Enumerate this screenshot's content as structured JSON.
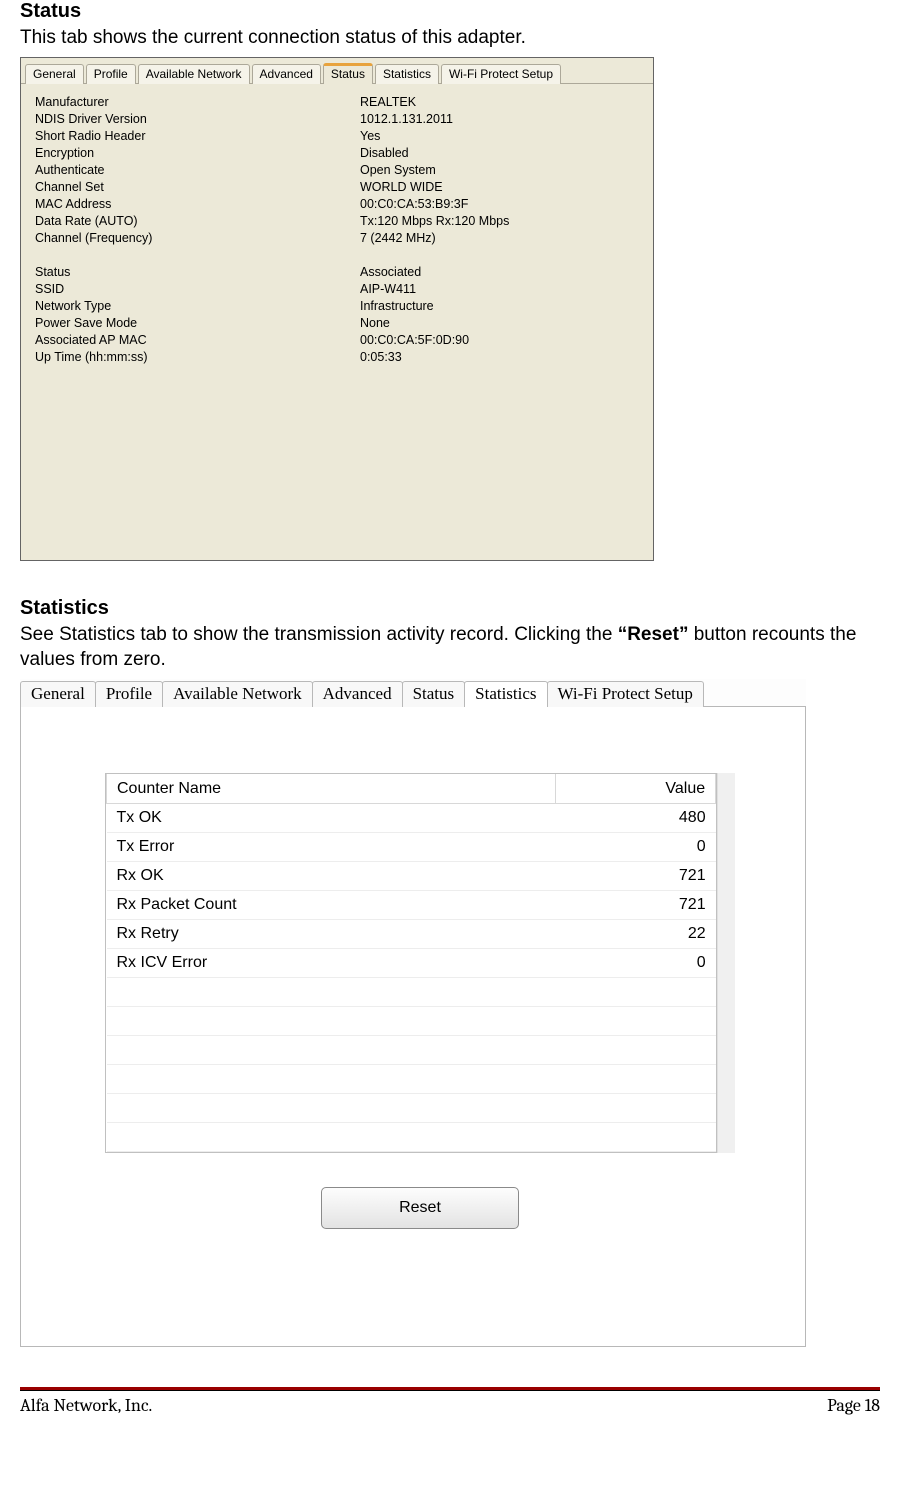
{
  "section1": {
    "heading": "Status",
    "description": "This tab shows the current connection status of this adapter."
  },
  "shot1": {
    "tabs": [
      "General",
      "Profile",
      "Available Network",
      "Advanced",
      "Status",
      "Statistics",
      "Wi-Fi Protect Setup"
    ],
    "active_tab_index": 4,
    "rows_block1": [
      {
        "label": "Manufacturer",
        "value": "REALTEK"
      },
      {
        "label": "NDIS Driver Version",
        "value": "1012.1.131.2011"
      },
      {
        "label": "Short Radio Header",
        "value": "Yes"
      },
      {
        "label": "Encryption",
        "value": "Disabled"
      },
      {
        "label": "Authenticate",
        "value": "Open System"
      },
      {
        "label": "Channel Set",
        "value": "WORLD WIDE"
      },
      {
        "label": "MAC Address",
        "value": "00:C0:CA:53:B9:3F"
      },
      {
        "label": "Data Rate (AUTO)",
        "value": "Tx:120 Mbps Rx:120 Mbps"
      },
      {
        "label": "Channel (Frequency)",
        "value": "7 (2442 MHz)"
      }
    ],
    "rows_block2": [
      {
        "label": "Status",
        "value": "Associated"
      },
      {
        "label": "SSID",
        "value": "AIP-W411"
      },
      {
        "label": "Network Type",
        "value": "Infrastructure"
      },
      {
        "label": "Power Save Mode",
        "value": "None"
      },
      {
        "label": "Associated AP MAC",
        "value": "00:C0:CA:5F:0D:90"
      },
      {
        "label": "Up Time (hh:mm:ss)",
        "value": "0:05:33"
      }
    ]
  },
  "section2": {
    "heading": "Statistics",
    "desc_pre": "See Statistics tab to show the transmission activity record. Clicking the ",
    "desc_bold": "“Reset”",
    "desc_post": " button recounts the values from zero."
  },
  "shot2": {
    "tabs": [
      "General",
      "Profile",
      "Available Network",
      "Advanced",
      "Status",
      "Statistics",
      "Wi-Fi Protect Setup"
    ],
    "active_tab_index": 5,
    "table": {
      "columns": [
        "Counter Name",
        "Value"
      ],
      "rows": [
        {
          "name": "Tx OK",
          "value": "480"
        },
        {
          "name": "Tx Error",
          "value": "0"
        },
        {
          "name": "Rx OK",
          "value": "721"
        },
        {
          "name": "Rx Packet Count",
          "value": "721"
        },
        {
          "name": "Rx Retry",
          "value": "22"
        },
        {
          "name": "Rx ICV Error",
          "value": "0"
        }
      ],
      "empty_rows": 6
    },
    "reset_label": "Reset"
  },
  "footer": {
    "left": "Alfa Network, Inc.",
    "right": "Page 18"
  },
  "colors": {
    "xp_bg": "#ece9d8",
    "xp_tab_border": "#aca899",
    "xp_active_top": "#e8a33d",
    "rule_red": "#990000"
  }
}
